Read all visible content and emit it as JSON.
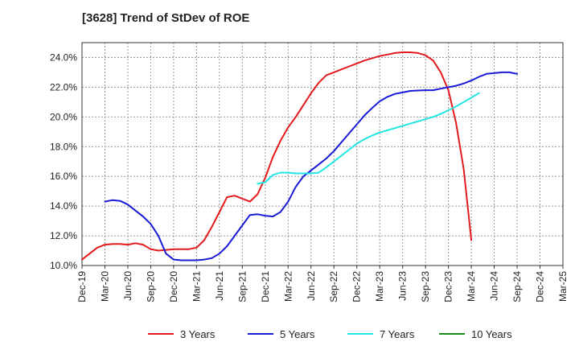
{
  "chart_data": {
    "type": "line",
    "title": "[3628]  Trend of StDev of ROE",
    "xlabel": "",
    "ylabel": "",
    "x_ticks": [
      "Dec-19",
      "Mar-20",
      "Jun-20",
      "Sep-20",
      "Dec-20",
      "Mar-21",
      "Jun-21",
      "Sep-21",
      "Dec-21",
      "Mar-22",
      "Jun-22",
      "Sep-22",
      "Dec-22",
      "Mar-23",
      "Jun-23",
      "Sep-23",
      "Dec-23",
      "Mar-24",
      "Jun-24",
      "Sep-24",
      "Dec-24",
      "Mar-25"
    ],
    "y_ticks": [
      "10.0%",
      "12.0%",
      "14.0%",
      "16.0%",
      "18.0%",
      "20.0%",
      "22.0%",
      "24.0%"
    ],
    "ylim": [
      10.0,
      25.0
    ],
    "y_grid": [
      10,
      12,
      14,
      16,
      18,
      20,
      22,
      24
    ],
    "grid": true,
    "legend_position": "bottom",
    "series": [
      {
        "name": "3 Years",
        "color": "#e31a1c",
        "start_index": 0,
        "values": [
          10.4,
          10.8,
          11.2,
          11.4,
          11.45,
          11.45,
          11.4,
          11.5,
          11.4,
          11.1,
          11.0,
          11.05,
          11.1,
          11.1,
          11.1,
          11.2,
          11.7,
          12.6,
          13.6,
          14.6,
          14.7,
          14.5,
          14.3,
          14.8,
          15.9,
          17.3,
          18.4,
          19.3,
          20.0,
          20.8,
          21.6,
          22.3,
          22.8,
          23.0,
          23.2,
          23.4,
          23.6,
          23.8,
          23.95,
          24.1,
          24.2,
          24.3,
          24.35,
          24.35,
          24.3,
          24.15,
          23.8,
          23.0,
          21.8,
          19.6,
          16.5,
          11.7
        ]
      },
      {
        "name": "5 Years",
        "color": "#1a1ad6",
        "start_index": 3,
        "values": [
          14.3,
          14.4,
          14.35,
          14.1,
          13.7,
          13.3,
          12.8,
          12.0,
          10.8,
          10.4,
          10.35,
          10.35,
          10.35,
          10.4,
          10.5,
          10.8,
          11.3,
          12.0,
          12.7,
          13.4,
          13.45,
          13.35,
          13.3,
          13.6,
          14.3,
          15.3,
          16.0,
          16.4,
          16.8,
          17.2,
          17.7,
          18.3,
          18.9,
          19.5,
          20.1,
          20.6,
          21.05,
          21.35,
          21.55,
          21.65,
          21.75,
          21.78,
          21.8,
          21.8,
          21.9,
          22.0,
          22.1,
          22.25,
          22.45,
          22.7,
          22.9,
          22.95,
          23.0,
          23.0,
          22.9
        ]
      },
      {
        "name": "7 Years",
        "color": "#22e5e5",
        "start_index": 23,
        "values": [
          15.5,
          15.6,
          16.1,
          16.25,
          16.25,
          16.2,
          16.2,
          16.2,
          16.25,
          16.6,
          17.0,
          17.4,
          17.8,
          18.2,
          18.5,
          18.75,
          18.95,
          19.1,
          19.25,
          19.4,
          19.55,
          19.7,
          19.85,
          20.0,
          20.2,
          20.45,
          20.7,
          21.0,
          21.3,
          21.6
        ]
      },
      {
        "name": "10 Years",
        "color": "#1a8a1a",
        "start_index": 0,
        "values": []
      }
    ]
  }
}
